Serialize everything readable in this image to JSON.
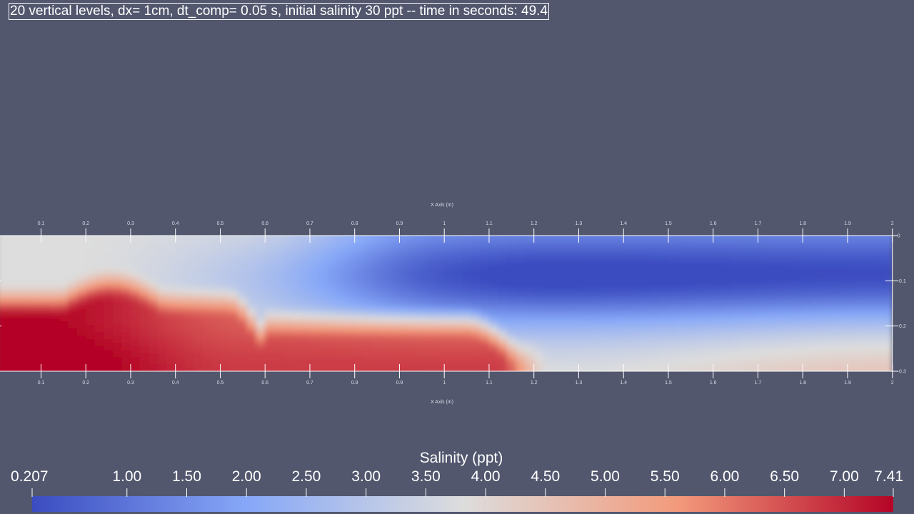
{
  "title": "20 vertical levels, dx= 1cm, dt_comp= 0.05 s, initial salinity 30 ppt -- time in seconds: 49.4",
  "chart_data": {
    "type": "heatmap",
    "x_axis": {
      "label": "X Axis (m)",
      "range": [
        0,
        2
      ],
      "ticks": [
        0.1,
        0.2,
        0.3,
        0.4,
        0.5,
        0.6,
        0.7,
        0.8,
        0.9,
        1,
        1.1,
        1.2,
        1.3,
        1.4,
        1.5,
        1.6,
        1.7,
        1.8,
        1.9,
        2
      ],
      "tick_labels": [
        "0.1",
        "0.2",
        "0.3",
        "0.4",
        "0.5",
        "0.6",
        "0.7",
        "0.8",
        "0.9",
        "1",
        "1.1",
        "1.2",
        "1.3",
        "1.4",
        "1.5",
        "1.6",
        "1.7",
        "1.8",
        "1.9",
        "2"
      ]
    },
    "y_axis": {
      "range": [
        -0.3,
        0
      ],
      "ticks": [
        0,
        -0.1,
        -0.2,
        -0.3
      ],
      "tick_labels": [
        "0",
        "-0.1",
        "-0.2",
        "-0.3"
      ]
    },
    "colorbar": {
      "title": "Salinity (ppt)",
      "range": [
        0.207,
        7.41
      ],
      "ticks": [
        0.207,
        1.0,
        1.5,
        2.0,
        2.5,
        3.0,
        3.5,
        4.0,
        4.5,
        5.0,
        5.5,
        6.0,
        6.5,
        7.0,
        7.41
      ],
      "tick_labels": [
        "0.207",
        "1.00",
        "1.50",
        "2.00",
        "2.50",
        "3.00",
        "3.50",
        "4.00",
        "4.50",
        "5.00",
        "5.50",
        "6.00",
        "6.50",
        "7.00",
        "7.41"
      ],
      "colormap": "Cool to Warm",
      "colors": [
        "#3b4cc0",
        "#dddddd",
        "#b40426"
      ]
    }
  }
}
